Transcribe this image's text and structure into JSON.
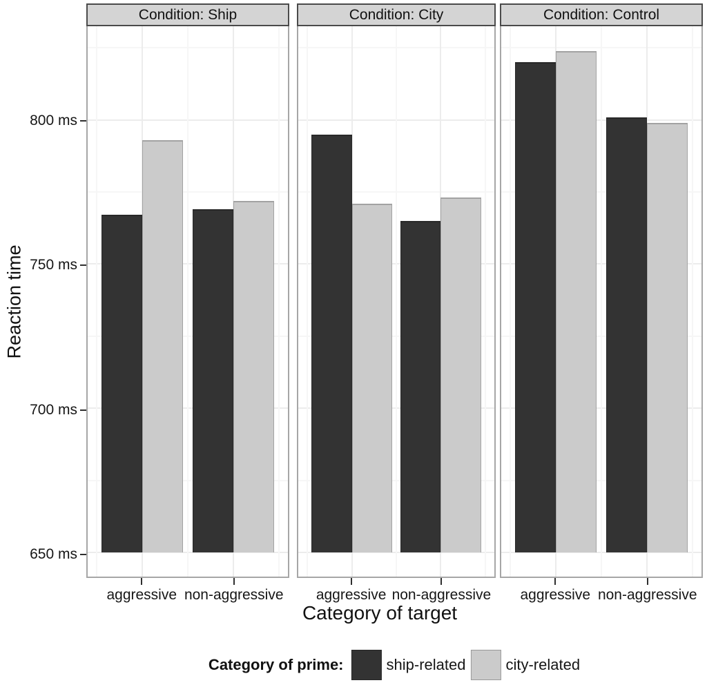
{
  "chart_data": {
    "type": "bar",
    "title": "",
    "facet_variable": "Condition",
    "categories": [
      "aggressive",
      "non-aggressive"
    ],
    "facets": [
      {
        "label": "Condition: Ship",
        "series": [
          {
            "name": "ship-related",
            "values": [
              767,
              769
            ]
          },
          {
            "name": "city-related",
            "values": [
              793,
              772
            ]
          }
        ]
      },
      {
        "label": "Condition: City",
        "series": [
          {
            "name": "ship-related",
            "values": [
              795,
              765
            ]
          },
          {
            "name": "city-related",
            "values": [
              771,
              773
            ]
          }
        ]
      },
      {
        "label": "Condition: Control",
        "series": [
          {
            "name": "ship-related",
            "values": [
              820,
              801
            ]
          },
          {
            "name": "city-related",
            "values": [
              824,
              799
            ]
          }
        ]
      }
    ],
    "xlabel": "Category of target",
    "ylabel": "Reaction time",
    "y_unit": "ms",
    "yticks": [
      650,
      700,
      750,
      800
    ],
    "ytick_labels": [
      "650 ms",
      "700 ms",
      "750 ms",
      "800 ms"
    ],
    "yticks_minor": [
      675,
      725,
      775,
      825
    ],
    "bar_baseline": 650,
    "ylim_render": [
      641.6,
      832.5
    ],
    "grid": true,
    "legend_position": "bottom",
    "legend_title": "Category of prime:",
    "legend_items": [
      {
        "label": "ship-related",
        "color": "#333333"
      },
      {
        "label": "city-related",
        "color": "#cbcbcb"
      }
    ],
    "series_colors": {
      "ship-related": "#333333",
      "city-related": "#cbcbcb"
    },
    "strip_bg": "#d4d4d4",
    "cat_centers_pct": [
      27.3,
      72.7
    ],
    "bar_width_pct": 20.45
  }
}
